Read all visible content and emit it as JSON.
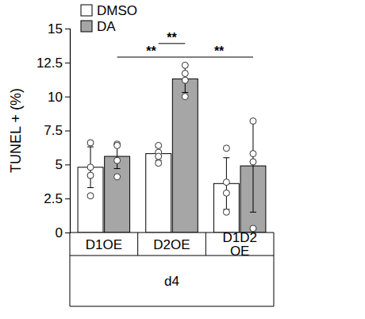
{
  "chart_data": {
    "type": "bar",
    "categories": [
      "D1OE",
      "D2OE",
      "D1D2\nOE"
    ],
    "x_label": "d4",
    "y_label": "TUNEL + (%)",
    "ylim": [
      0,
      15
    ],
    "yticks": [
      0,
      2.5,
      5,
      7.5,
      10,
      12.5,
      15
    ],
    "legend": "top-left",
    "series": [
      {
        "name": "DMSO",
        "color": "#ffffff",
        "values": [
          4.8,
          5.8,
          3.6
        ],
        "errors": [
          1.5,
          0.5,
          1.9
        ],
        "points": [
          [
            6.6,
            4.8,
            4.2,
            2.7
          ],
          [
            6.4,
            5.9,
            5.6,
            5.1
          ],
          [
            6.2,
            3.7,
            2.9,
            1.5
          ]
        ]
      },
      {
        "name": "DA",
        "color": "#a6a6a6",
        "values": [
          5.6,
          11.3,
          4.9
        ],
        "errors": [
          0.9,
          1.0,
          3.4
        ],
        "points": [
          [
            6.5,
            6.4,
            5.3,
            4.1
          ],
          [
            12.3,
            11.7,
            11.2,
            10.0
          ],
          [
            8.2,
            5.8,
            5.2,
            0.3
          ]
        ]
      }
    ],
    "annotations": [
      {
        "text": "**",
        "from": [
          1,
          0
        ],
        "to": [
          1,
          1
        ],
        "y": 13.9
      },
      {
        "text": "**",
        "from": [
          0,
          1
        ],
        "to": [
          1,
          1
        ],
        "y": 12.9
      },
      {
        "text": "**",
        "from": [
          1,
          1
        ],
        "to": [
          2,
          1
        ],
        "y": 12.9
      }
    ]
  }
}
